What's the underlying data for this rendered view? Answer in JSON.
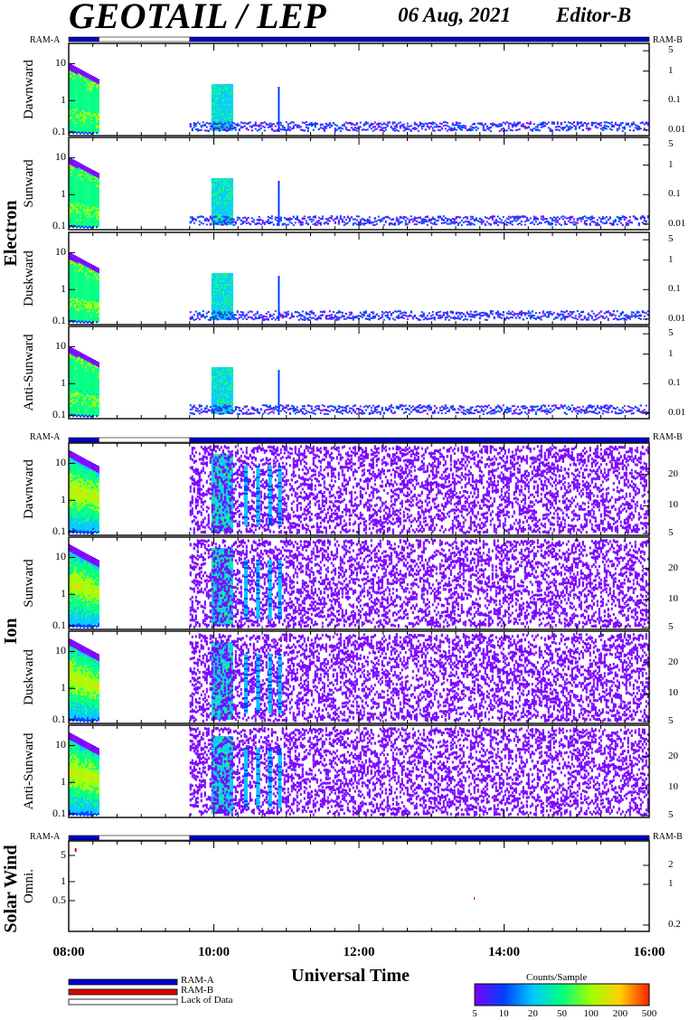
{
  "header": {
    "title": "GEOTAIL / LEP",
    "date": "06 Aug, 2021",
    "editor": "Editor-B"
  },
  "chart_data": {
    "type": "heatmap",
    "xlabel": "Universal Time",
    "x_ticks": [
      "08:00",
      "10:00",
      "12:00",
      "14:00",
      "16:00"
    ],
    "x_range": [
      "08:00",
      "16:00"
    ],
    "ram_labels": {
      "a": "RAM-A",
      "b": "RAM-B"
    },
    "ram_bar": [
      {
        "from": "08:00",
        "to": "08:25",
        "status": "RAM-A"
      },
      {
        "from": "08:25",
        "to": "09:40",
        "status": "Lack of Data"
      },
      {
        "from": "09:40",
        "to": "16:00",
        "status": "RAM-A"
      }
    ],
    "groups": [
      {
        "name": "Electron",
        "panels": [
          {
            "label": "Dawnward",
            "left_ticks": [
              "10",
              "1",
              "0.1"
            ],
            "right_ticks": [
              "5",
              "1",
              "0.1",
              "0.01"
            ]
          },
          {
            "label": "Sunward",
            "left_ticks": [
              "10",
              "1",
              "0.1"
            ],
            "right_ticks": [
              "5",
              "1",
              "0.1",
              "0.01"
            ]
          },
          {
            "label": "Duskward",
            "left_ticks": [
              "10",
              "1",
              "0.1"
            ],
            "right_ticks": [
              "5",
              "1",
              "0.1",
              "0.01"
            ]
          },
          {
            "label": "Anti-Sunward",
            "left_ticks": [
              "10",
              "1",
              "0.1"
            ],
            "right_ticks": [
              "5",
              "1",
              "0.1",
              "0.01"
            ]
          }
        ]
      },
      {
        "name": "Ion",
        "panels": [
          {
            "label": "Dawnward",
            "left_ticks": [
              "10",
              "1",
              "0.1"
            ],
            "right_ticks": [
              "20",
              "10",
              "5"
            ]
          },
          {
            "label": "Sunward",
            "left_ticks": [
              "10",
              "1",
              "0.1"
            ],
            "right_ticks": [
              "20",
              "10",
              "5"
            ]
          },
          {
            "label": "Duskward",
            "left_ticks": [
              "10",
              "1",
              "0.1"
            ],
            "right_ticks": [
              "20",
              "10",
              "5"
            ]
          },
          {
            "label": "Anti-Sunward",
            "left_ticks": [
              "10",
              "1",
              "0.1"
            ],
            "right_ticks": [
              "20",
              "10",
              "5"
            ]
          }
        ]
      },
      {
        "name": "Solar Wind",
        "panels": [
          {
            "label": "Omni.",
            "left_ticks": [
              "5",
              "1",
              "0.5"
            ],
            "right_ticks": [
              "2",
              "1",
              "0.2"
            ]
          }
        ]
      }
    ],
    "legend": [
      {
        "label": "RAM-A",
        "color": "#0000cc"
      },
      {
        "label": "RAM-B",
        "color": "#dd0000"
      },
      {
        "label": "Lack of Data",
        "color": "#ffffff"
      }
    ],
    "colorbar": {
      "title": "Counts/Sample",
      "ticks": [
        "5",
        "10",
        "20",
        "50",
        "100",
        "200",
        "500"
      ],
      "colors": [
        "#7a00ff",
        "#0040ff",
        "#00c8ff",
        "#00ff80",
        "#a0ff00",
        "#ffd000",
        "#ff2000"
      ]
    }
  }
}
